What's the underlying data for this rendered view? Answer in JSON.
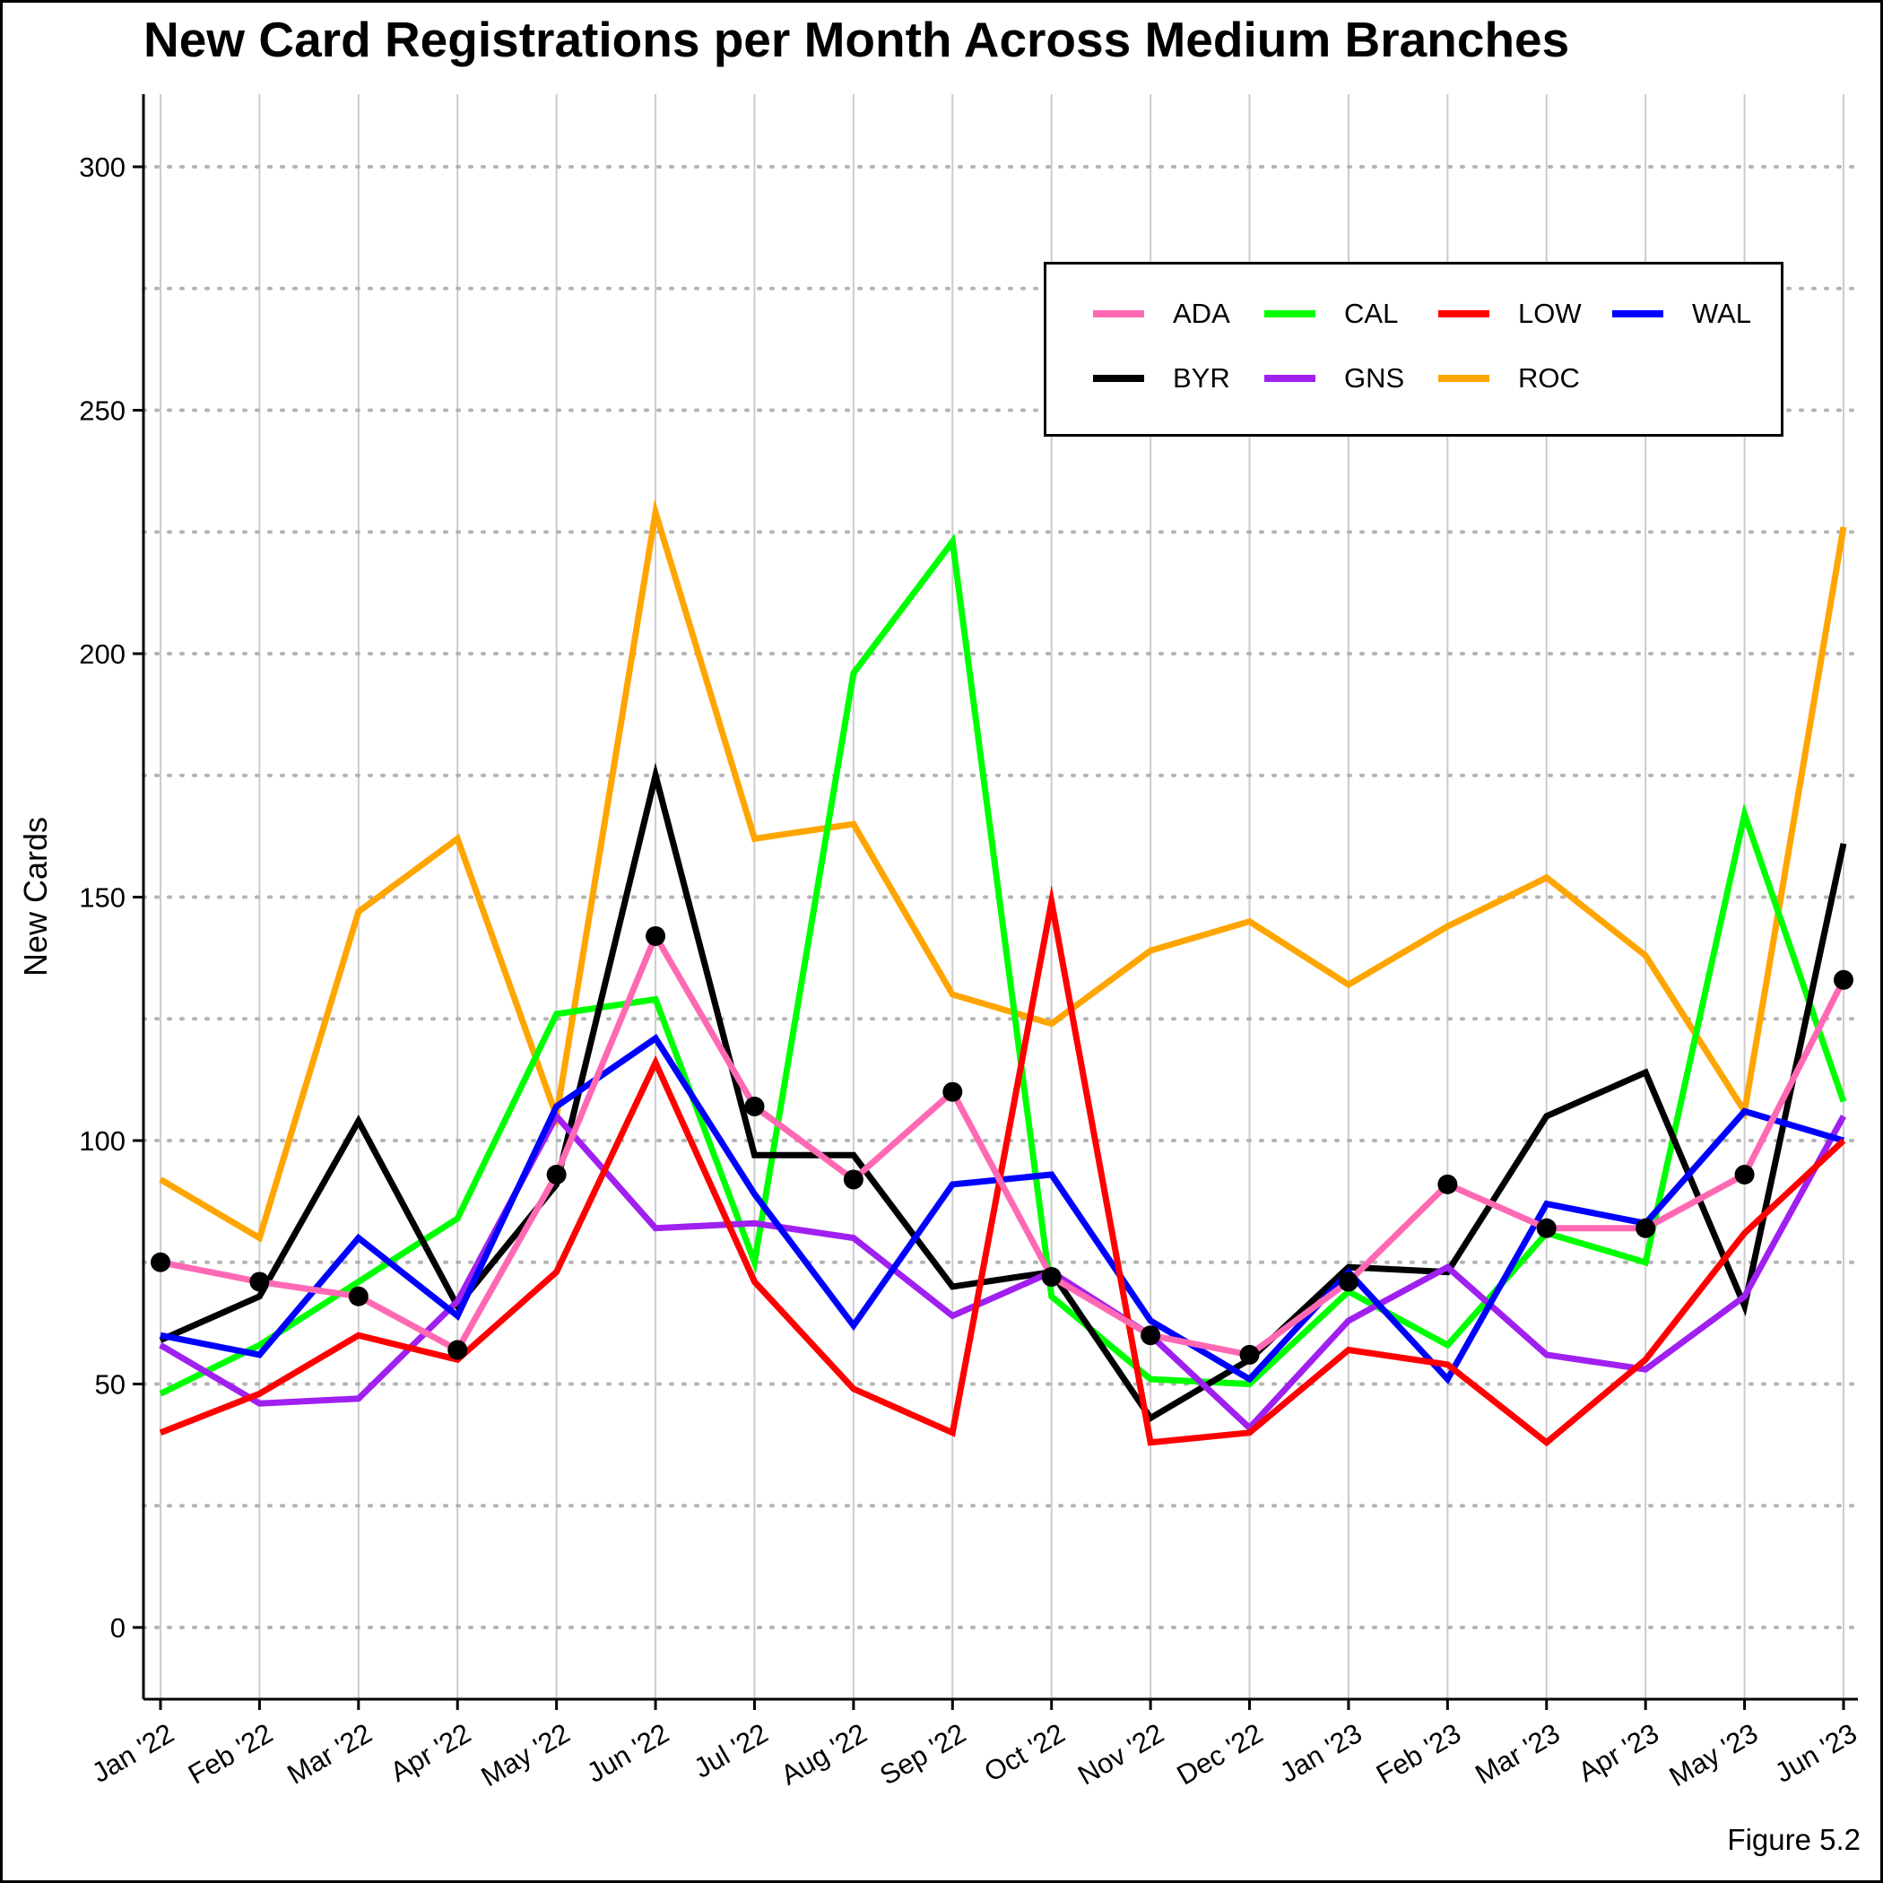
{
  "chart_data": {
    "type": "line",
    "title": "New Card Registrations per Month Across Medium Branches",
    "ylabel": "New Cards",
    "xlabel": "",
    "caption": "Figure 5.2",
    "ylim": [
      -15,
      315
    ],
    "yticks": [
      0,
      50,
      100,
      150,
      200,
      250,
      300
    ],
    "grid": "dotted horizontal (major and minor), solid light vertical",
    "legend_position": "top-right",
    "categories": [
      "Jan '22",
      "Feb '22",
      "Mar '22",
      "Apr '22",
      "May '22",
      "Jun '22",
      "Jul '22",
      "Aug '22",
      "Sep '22",
      "Oct '22",
      "Nov '22",
      "Dec '22",
      "Jan '23",
      "Feb '23",
      "Mar '23",
      "Apr '23",
      "May '23",
      "Jun '23"
    ],
    "series": [
      {
        "name": "ROC",
        "color": "#FFA500",
        "values": [
          92,
          80,
          147,
          162,
          105,
          229,
          162,
          165,
          130,
          124,
          139,
          145,
          132,
          144,
          154,
          138,
          106,
          226
        ]
      },
      {
        "name": "CAL",
        "color": "#00FF00",
        "values": [
          48,
          58,
          71,
          84,
          126,
          129,
          75,
          196,
          223,
          68,
          51,
          50,
          69,
          58,
          81,
          75,
          167,
          108
        ]
      },
      {
        "name": "BYR",
        "color": "#000000",
        "values": [
          59,
          68,
          104,
          66,
          91,
          175,
          97,
          97,
          70,
          73,
          43,
          55,
          74,
          73,
          105,
          114,
          66,
          161
        ]
      },
      {
        "name": "GNS",
        "color": "#A020F0",
        "values": [
          58,
          46,
          47,
          67,
          105,
          82,
          83,
          80,
          64,
          73,
          60,
          41,
          63,
          74,
          56,
          53,
          68,
          105
        ]
      },
      {
        "name": "WAL",
        "color": "#0000FF",
        "values": [
          60,
          56,
          80,
          64,
          107,
          121,
          89,
          62,
          91,
          93,
          63,
          51,
          73,
          51,
          87,
          83,
          106,
          100
        ]
      },
      {
        "name": "LOW",
        "color": "#FF0000",
        "values": [
          40,
          48,
          60,
          55,
          73,
          116,
          71,
          49,
          40,
          149,
          38,
          40,
          57,
          54,
          38,
          55,
          81,
          100
        ]
      },
      {
        "name": "ADA",
        "color": "#FF69B4",
        "values": [
          75,
          71,
          68,
          57,
          93,
          142,
          107,
          92,
          110,
          72,
          60,
          56,
          71,
          91,
          82,
          82,
          93,
          133
        ]
      }
    ],
    "markers": {
      "series": "ADA",
      "color": "#000000"
    },
    "legend_order": [
      "ADA",
      "CAL",
      "LOW",
      "WAL",
      "BYR",
      "GNS",
      "ROC"
    ]
  }
}
